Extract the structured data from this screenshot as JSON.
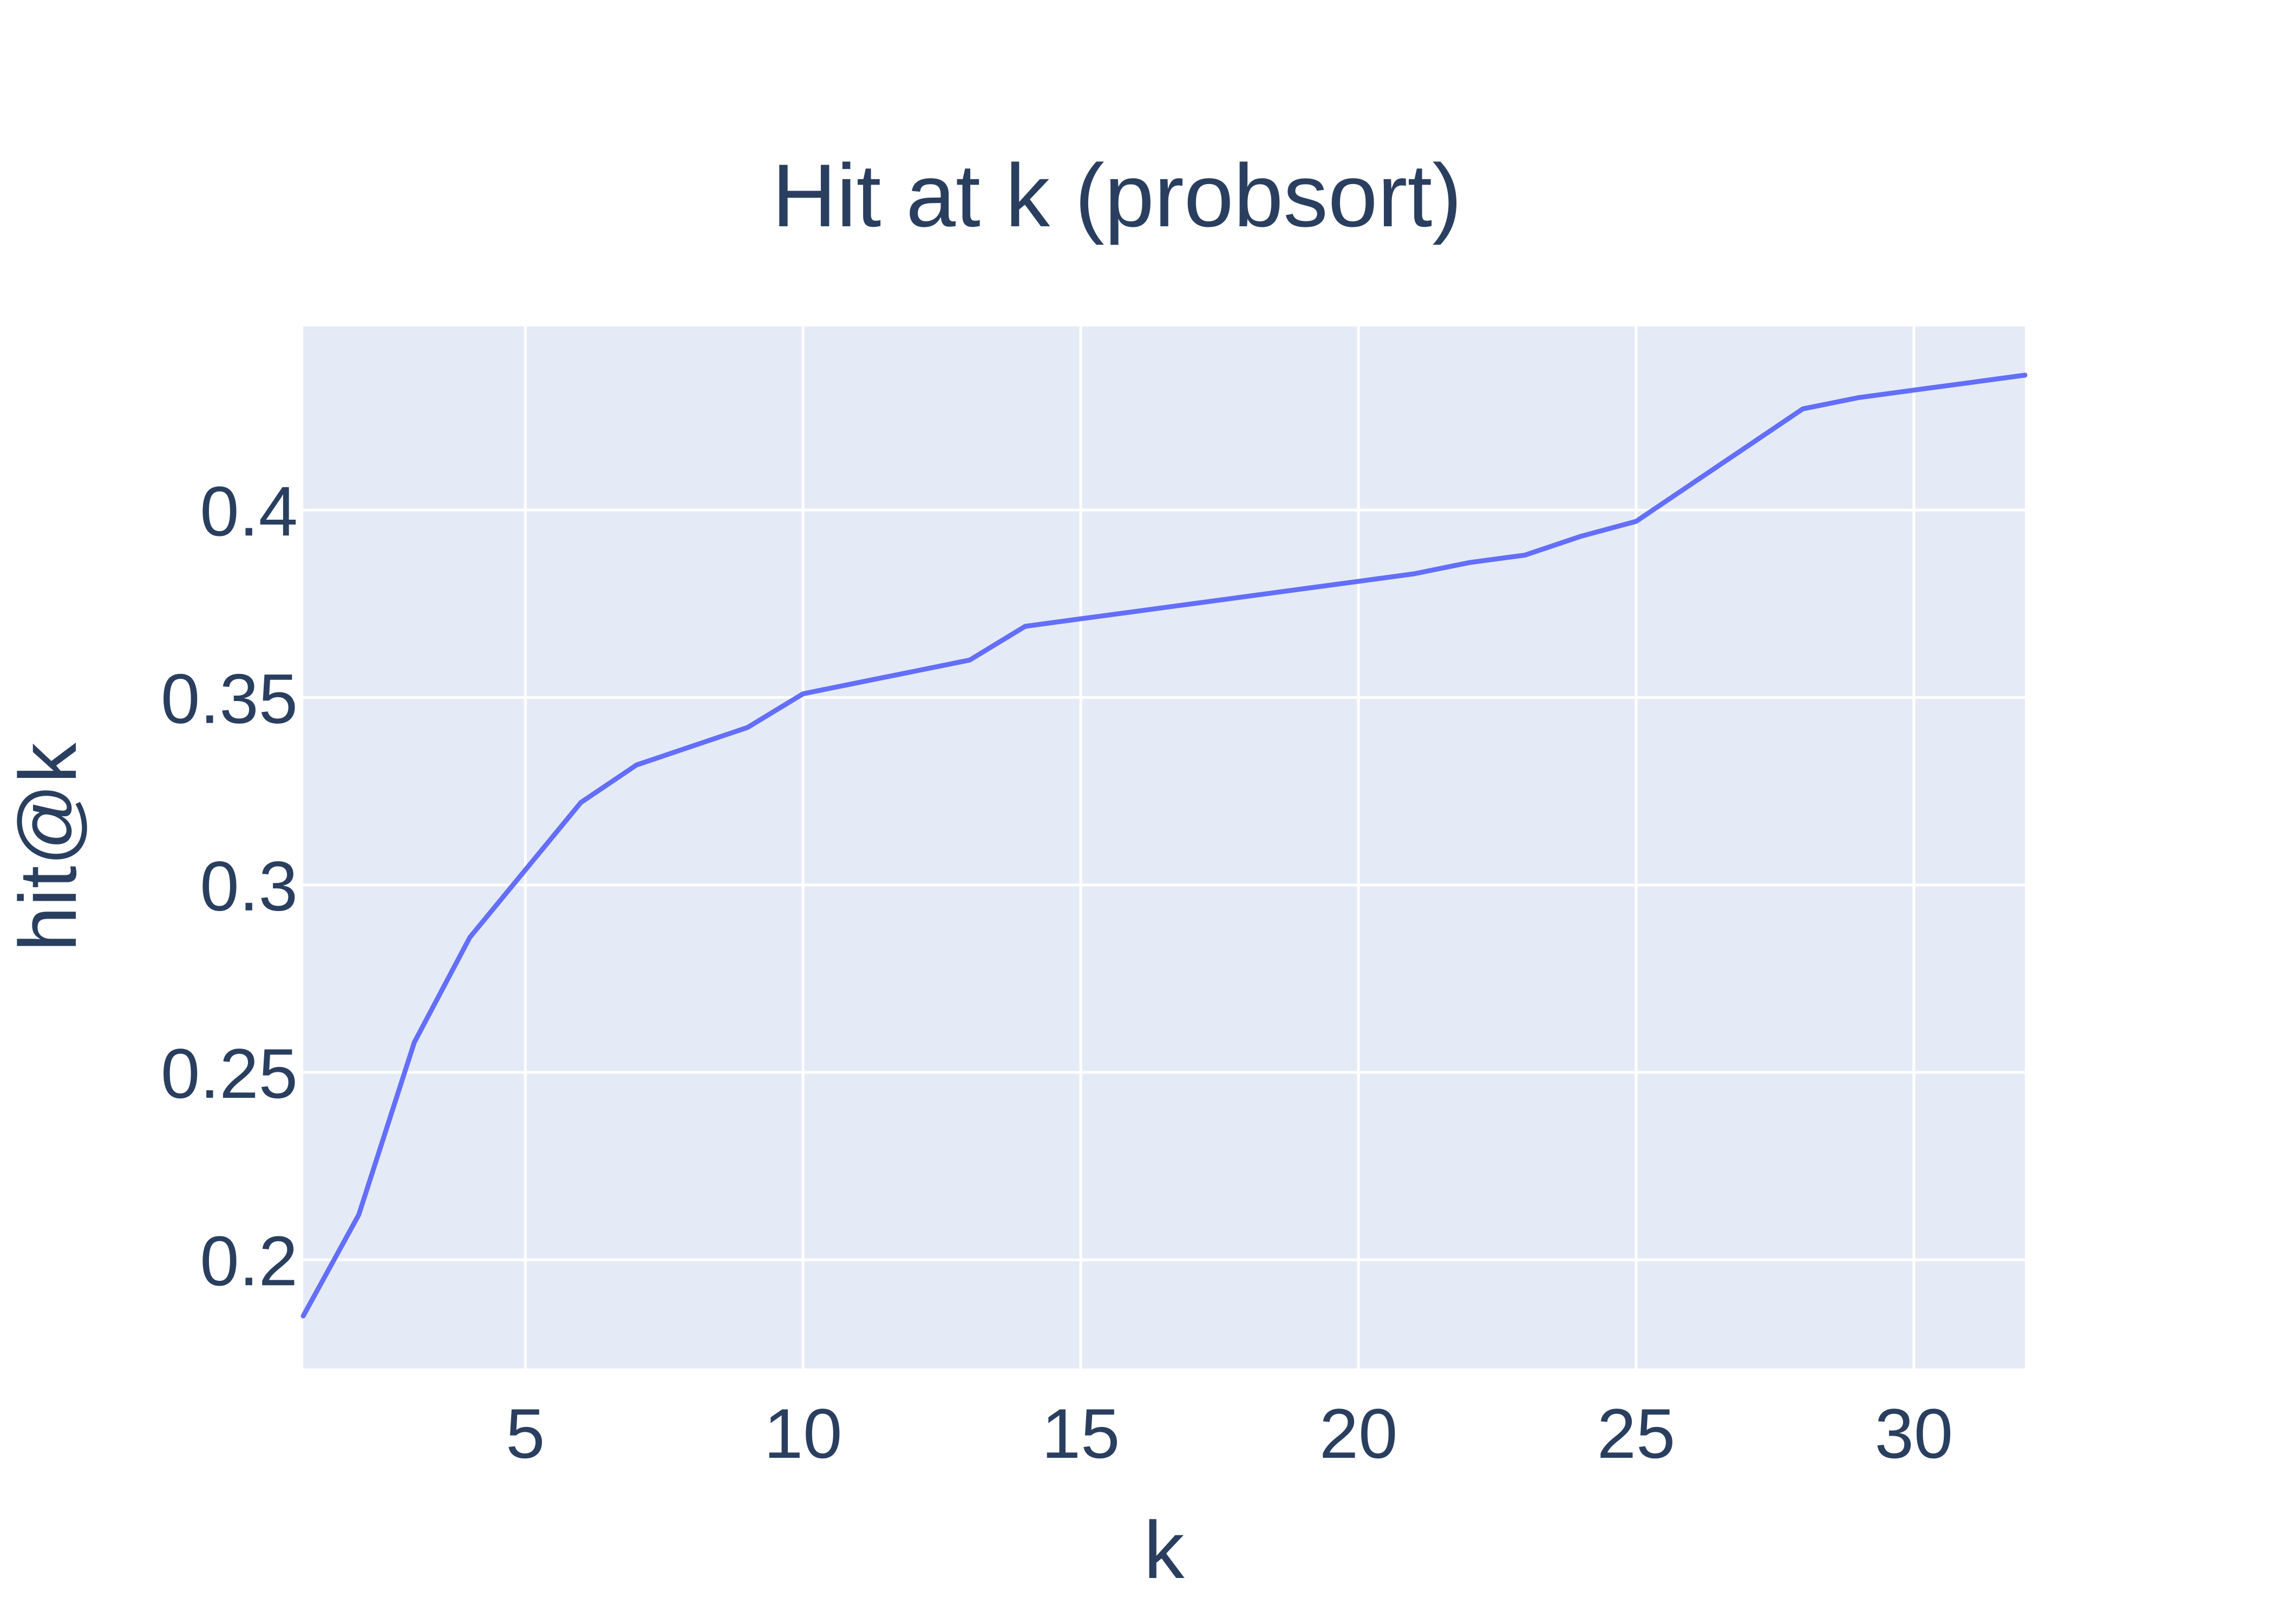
{
  "chart_data": {
    "type": "line",
    "title": "Hit at k (probsort)",
    "xlabel": "k",
    "ylabel": "hit@k",
    "xlim": [
      1,
      32
    ],
    "ylim": [
      0.171,
      0.449
    ],
    "x_ticks": [
      5,
      10,
      15,
      20,
      25,
      30
    ],
    "x_tick_labels": [
      "5",
      "10",
      "15",
      "20",
      "25",
      "30"
    ],
    "y_ticks": [
      0.2,
      0.25,
      0.3,
      0.35,
      0.4
    ],
    "y_tick_labels": [
      "0.2",
      "0.25",
      "0.3",
      "0.35",
      "0.4"
    ],
    "grid": true,
    "legend": "none",
    "colors": {
      "series": "#636efa",
      "plot_background": "#e5ebf6",
      "grid": "#ffffff",
      "text": "#2a3f5f"
    },
    "series": [
      {
        "x": [
          1,
          2,
          3,
          4,
          5,
          6,
          7,
          8,
          9,
          10,
          11,
          12,
          13,
          14,
          15,
          16,
          17,
          18,
          19,
          20,
          21,
          22,
          23,
          24,
          25,
          26,
          27,
          28,
          29,
          30,
          31,
          32
        ],
        "values": [
          0.185,
          0.212,
          0.258,
          0.286,
          0.304,
          0.322,
          0.332,
          0.337,
          0.342,
          0.351,
          0.354,
          0.357,
          0.36,
          0.369,
          0.371,
          0.373,
          0.375,
          0.377,
          0.379,
          0.381,
          0.383,
          0.386,
          0.388,
          0.393,
          0.397,
          0.407,
          0.417,
          0.427,
          0.43,
          0.432,
          0.434,
          0.436
        ]
      }
    ]
  }
}
